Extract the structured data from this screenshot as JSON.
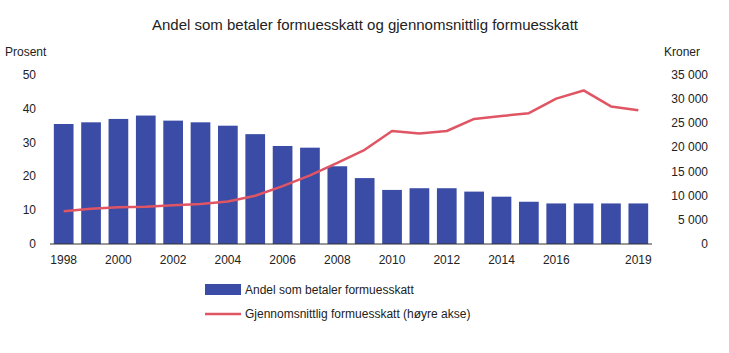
{
  "chart_data": {
    "type": "bar",
    "title": "Andel som betaler formuesskatt og gjennomsnittlig formuesskatt",
    "y_label": "Prosent",
    "y2_label": "Kroner",
    "categories": [
      "1998",
      null,
      "2000",
      null,
      "2002",
      null,
      "2004",
      null,
      "2006",
      null,
      "2008",
      null,
      "2010",
      null,
      "2012",
      null,
      "2014",
      null,
      "2016",
      null,
      null,
      "2019"
    ],
    "series": [
      {
        "name": "Andel som betaler formuesskatt",
        "type": "bar",
        "color": "#3a4ca6",
        "values": [
          35.5,
          36,
          37,
          38,
          36.5,
          36,
          35,
          32.5,
          29,
          28.5,
          23,
          19.5,
          16,
          16.5,
          16.5,
          15.5,
          14,
          12.5,
          12,
          12,
          12,
          12
        ]
      },
      {
        "name": "Gjennomsnittlig formuesskatt (høyre akse)",
        "type": "line",
        "color": "#e05563",
        "axis": "y2",
        "values": [
          6800,
          7300,
          7600,
          7700,
          8000,
          8300,
          8800,
          10000,
          12000,
          14200,
          16800,
          19500,
          23400,
          22900,
          23400,
          25900,
          26500,
          27100,
          30100,
          31800,
          28500,
          27700
        ]
      }
    ],
    "ylim": [
      0,
      50
    ],
    "yticks": [
      0,
      10,
      20,
      30,
      40,
      50
    ],
    "y2lim": [
      0,
      35000
    ],
    "y2ticks": [
      0,
      {
        "value": 5000,
        "label": "5 000"
      },
      {
        "value": 10000,
        "label": "10 000"
      },
      {
        "value": 15000,
        "label": "15 000"
      },
      {
        "value": 20000,
        "label": "20 000"
      },
      {
        "value": 25000,
        "label": "25 000"
      },
      {
        "value": 30000,
        "label": "30 000"
      },
      {
        "value": 35000,
        "label": "35 000"
      }
    ],
    "grid": false,
    "legend": "bottom"
  }
}
